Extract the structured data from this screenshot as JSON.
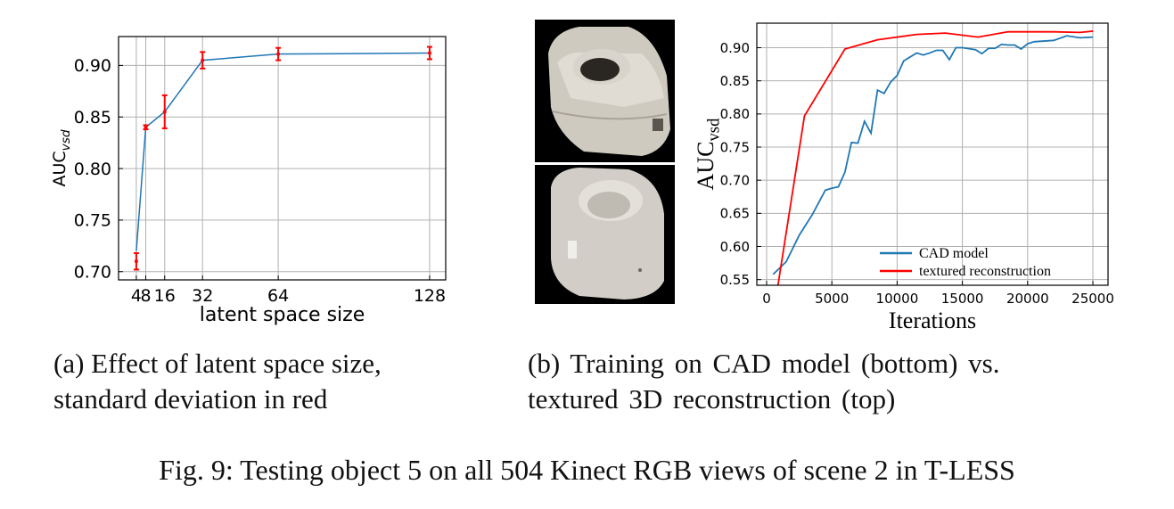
{
  "chart_data": [
    {
      "type": "line",
      "title": "",
      "xlabel": "latent space size",
      "ylabel": "AUC",
      "ylabel_subscript": "vsd",
      "xlim": [
        -3.5,
        134.8
      ],
      "ylim": [
        0.692,
        0.928
      ],
      "x_ticks": [
        4,
        8,
        16,
        32,
        64,
        128
      ],
      "y_ticks": [
        0.7,
        0.75,
        0.8,
        0.85,
        0.9
      ],
      "grid": true,
      "series": [
        {
          "color": "#1f77b4",
          "x": [
            4,
            8,
            16,
            32,
            64,
            128
          ],
          "y": [
            0.72,
            0.84,
            0.855,
            0.905,
            0.911,
            0.912
          ],
          "error_color": "#ff0000",
          "y_err_center": [
            0.71,
            0.84,
            0.855,
            0.905,
            0.911,
            0.912
          ],
          "y_err": [
            0.008,
            0.002,
            0.016,
            0.008,
            0.006,
            0.006
          ]
        }
      ]
    },
    {
      "type": "line",
      "title": "",
      "xlabel": "Iterations",
      "ylabel": "AUC",
      "ylabel_subscript": "vsd",
      "xlim": [
        -750,
        26160
      ],
      "ylim": [
        0.5415,
        0.937
      ],
      "x_ticks": [
        0,
        5000,
        10000,
        15000,
        20000,
        25000
      ],
      "y_ticks": [
        0.55,
        0.6,
        0.65,
        0.7,
        0.75,
        0.8,
        0.85,
        0.9
      ],
      "grid": true,
      "legend": "lower-right",
      "series": [
        {
          "name": "CAD model",
          "color": "#1f77b4",
          "x": [
            500,
            1500,
            2500,
            3500,
            4500,
            5000,
            5500,
            6000,
            6500,
            7000,
            7500,
            8000,
            8500,
            9000,
            9500,
            10000,
            10500,
            11500,
            12000,
            12500,
            13000,
            13500,
            14000,
            14500,
            15000,
            16000,
            16500,
            17000,
            17500,
            18000,
            18500,
            19000,
            19500,
            20000,
            20500,
            22000,
            23000,
            24000,
            25000
          ],
          "y": [
            0.558,
            0.577,
            0.617,
            0.648,
            0.685,
            0.688,
            0.69,
            0.712,
            0.757,
            0.756,
            0.789,
            0.771,
            0.836,
            0.831,
            0.848,
            0.858,
            0.88,
            0.892,
            0.889,
            0.892,
            0.896,
            0.896,
            0.882,
            0.9,
            0.9,
            0.897,
            0.891,
            0.899,
            0.899,
            0.905,
            0.904,
            0.904,
            0.898,
            0.906,
            0.909,
            0.911,
            0.918,
            0.915,
            0.916
          ]
        },
        {
          "name": "textured reconstruction",
          "color": "#ff0000",
          "x": [
            700,
            2900,
            6000,
            8500,
            11500,
            13700,
            16200,
            18500,
            22000,
            24000,
            25000
          ],
          "y": [
            0.52,
            0.797,
            0.898,
            0.912,
            0.92,
            0.922,
            0.916,
            0.924,
            0.924,
            0.923,
            0.925
          ]
        }
      ]
    }
  ],
  "captions": {
    "a_line1": "(a) Effect of latent space size,",
    "a_line2": "standard deviation in red",
    "b_line1": "(b) Training on CAD model (bottom) vs.",
    "b_line2": "textured 3D reconstruction (top)",
    "figure": "Fig. 9: Testing object 5 on all 504 Kinect RGB views of scene 2 in T-LESS"
  }
}
